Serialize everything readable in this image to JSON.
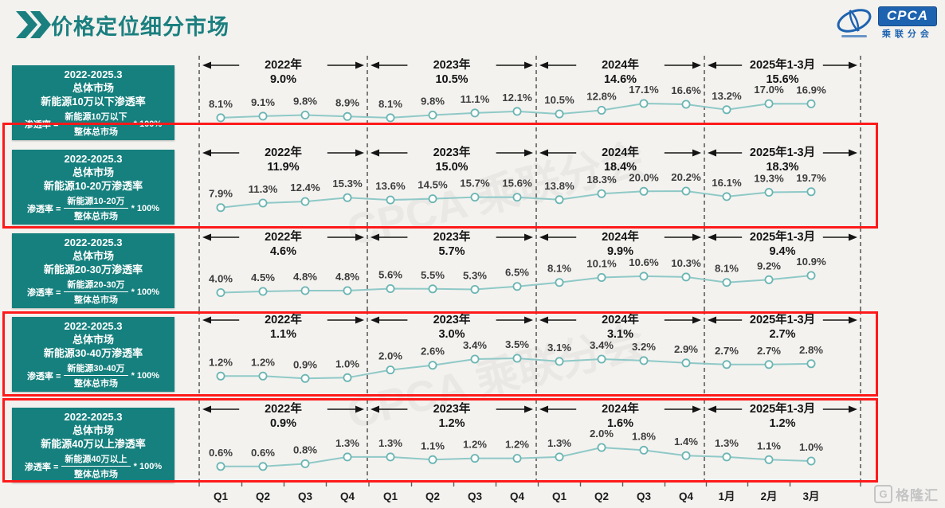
{
  "header": {
    "title": "价格定位细分市场",
    "logo_text": "CPCA",
    "logo_subtext": "乘联分会"
  },
  "watermark": "格隆汇",
  "background_watermark": "CPCA 乘联分会",
  "colors": {
    "accent_teal": "#15807e",
    "line_teal": "#8fc9c7",
    "marker_stroke": "#6ab5b3",
    "highlight_red": "#fe1a1a",
    "label_gray": "#3d3d3d",
    "header_black": "#141414",
    "logo_blue": "#1e63b0"
  },
  "x_axis": [
    "Q1",
    "Q2",
    "Q3",
    "Q4",
    "Q1",
    "Q2",
    "Q3",
    "Q4",
    "Q1",
    "Q2",
    "Q3",
    "Q4",
    "1月",
    "2月",
    "3月"
  ],
  "chart_data": [
    {
      "type": "line",
      "title": "新能源10万以下渗透率",
      "highlighted": false,
      "box": {
        "line1": "2022-2025.3",
        "line2": "总体市场",
        "line3": "新能源10万以下渗透率",
        "formula_prefix": "渗透率 =",
        "formula_numerator": "新能源10万以下",
        "formula_denominator": "整体总市场",
        "formula_suffix": "* 100%"
      },
      "periods": [
        {
          "label": "2022年",
          "value": "9.0%"
        },
        {
          "label": "2023年",
          "value": "10.5%"
        },
        {
          "label": "2024年",
          "value": "14.6%"
        },
        {
          "label": "2025年1-3月",
          "value": "15.6%"
        }
      ],
      "values": [
        8.1,
        9.1,
        9.8,
        8.9,
        8.1,
        9.8,
        11.1,
        12.1,
        10.5,
        12.8,
        17.1,
        16.6,
        13.2,
        17.0,
        16.9
      ],
      "point_labels": [
        "8.1%",
        "9.1%",
        "9.8%",
        "8.9%",
        "8.1%",
        "9.8%",
        "11.1%",
        "12.1%",
        "10.5%",
        "12.8%",
        "17.1%",
        "16.6%",
        "13.2%",
        "17.0%",
        "16.9%"
      ]
    },
    {
      "type": "line",
      "title": "新能源10-20万渗透率",
      "highlighted": true,
      "box": {
        "line1": "2022-2025.3",
        "line2": "总体市场",
        "line3": "新能源10-20万渗透率",
        "formula_prefix": "渗透率 =",
        "formula_numerator": "新能源10-20万",
        "formula_denominator": "整体总市场",
        "formula_suffix": "* 100%"
      },
      "periods": [
        {
          "label": "2022年",
          "value": "11.9%"
        },
        {
          "label": "2023年",
          "value": "15.0%"
        },
        {
          "label": "2024年",
          "value": "18.4%"
        },
        {
          "label": "2025年1-3月",
          "value": "18.3%"
        }
      ],
      "values": [
        7.9,
        11.3,
        12.4,
        15.3,
        13.6,
        14.5,
        15.7,
        15.6,
        13.8,
        18.3,
        20.0,
        20.2,
        16.1,
        19.3,
        19.7
      ],
      "point_labels": [
        "7.9%",
        "11.3%",
        "12.4%",
        "15.3%",
        "13.6%",
        "14.5%",
        "15.7%",
        "15.6%",
        "13.8%",
        "18.3%",
        "20.0%",
        "20.2%",
        "16.1%",
        "19.3%",
        "19.7%"
      ]
    },
    {
      "type": "line",
      "title": "新能源20-30万渗透率",
      "highlighted": false,
      "box": {
        "line1": "2022-2025.3",
        "line2": "总体市场",
        "line3": "新能源20-30万渗透率",
        "formula_prefix": "渗透率 =",
        "formula_numerator": "新能源20-30万",
        "formula_denominator": "整体总市场",
        "formula_suffix": "* 100%"
      },
      "periods": [
        {
          "label": "2022年",
          "value": "4.6%"
        },
        {
          "label": "2023年",
          "value": "5.7%"
        },
        {
          "label": "2024年",
          "value": "9.9%"
        },
        {
          "label": "2025年1-3月",
          "value": "9.4%"
        }
      ],
      "values": [
        4.0,
        4.5,
        4.8,
        4.8,
        5.6,
        5.5,
        5.3,
        6.5,
        8.1,
        10.1,
        10.6,
        10.3,
        8.1,
        9.2,
        10.9
      ],
      "point_labels": [
        "4.0%",
        "4.5%",
        "4.8%",
        "4.8%",
        "5.6%",
        "5.5%",
        "5.3%",
        "6.5%",
        "8.1%",
        "10.1%",
        "10.6%",
        "10.3%",
        "8.1%",
        "9.2%",
        "10.9%"
      ]
    },
    {
      "type": "line",
      "title": "新能源30-40万渗透率",
      "highlighted": true,
      "box": {
        "line1": "2022-2025.3",
        "line2": "总体市场",
        "line3": "新能源30-40万渗透率",
        "formula_prefix": "渗透率 =",
        "formula_numerator": "新能源30-40万",
        "formula_denominator": "整体总市场",
        "formula_suffix": "* 100%"
      },
      "periods": [
        {
          "label": "2022年",
          "value": "1.1%"
        },
        {
          "label": "2023年",
          "value": "3.0%"
        },
        {
          "label": "2024年",
          "value": "3.1%"
        },
        {
          "label": "2025年1-3月",
          "value": "2.7%"
        }
      ],
      "values": [
        1.2,
        1.2,
        0.9,
        1.0,
        2.0,
        2.6,
        3.4,
        3.5,
        3.1,
        3.4,
        3.2,
        2.9,
        2.7,
        2.7,
        2.8
      ],
      "point_labels": [
        "1.2%",
        "1.2%",
        "0.9%",
        "1.0%",
        "2.0%",
        "2.6%",
        "3.4%",
        "3.5%",
        "3.1%",
        "3.4%",
        "3.2%",
        "2.9%",
        "2.7%",
        "2.7%",
        "2.8%"
      ]
    },
    {
      "type": "line",
      "title": "新能源40万以上渗透率",
      "highlighted": true,
      "box": {
        "line1": "2022-2025.3",
        "line2": "总体市场",
        "line3": "新能源40万以上渗透率",
        "formula_prefix": "渗透率 =",
        "formula_numerator": "新能源40万以上",
        "formula_denominator": "整体总市场",
        "formula_suffix": "* 100%"
      },
      "periods": [
        {
          "label": "2022年",
          "value": "0.9%"
        },
        {
          "label": "2023年",
          "value": "1.2%"
        },
        {
          "label": "2024年",
          "value": "1.6%"
        },
        {
          "label": "2025年1-3月",
          "value": "1.2%"
        }
      ],
      "values": [
        0.6,
        0.6,
        0.8,
        1.3,
        1.3,
        1.1,
        1.2,
        1.2,
        1.3,
        2.0,
        1.8,
        1.4,
        1.3,
        1.1,
        1.0
      ],
      "point_labels": [
        "0.6%",
        "0.6%",
        "0.8%",
        "1.3%",
        "1.3%",
        "1.1%",
        "1.2%",
        "1.2%",
        "1.3%",
        "2.0%",
        "1.8%",
        "1.4%",
        "1.3%",
        "1.1%",
        "1.0%"
      ]
    }
  ]
}
